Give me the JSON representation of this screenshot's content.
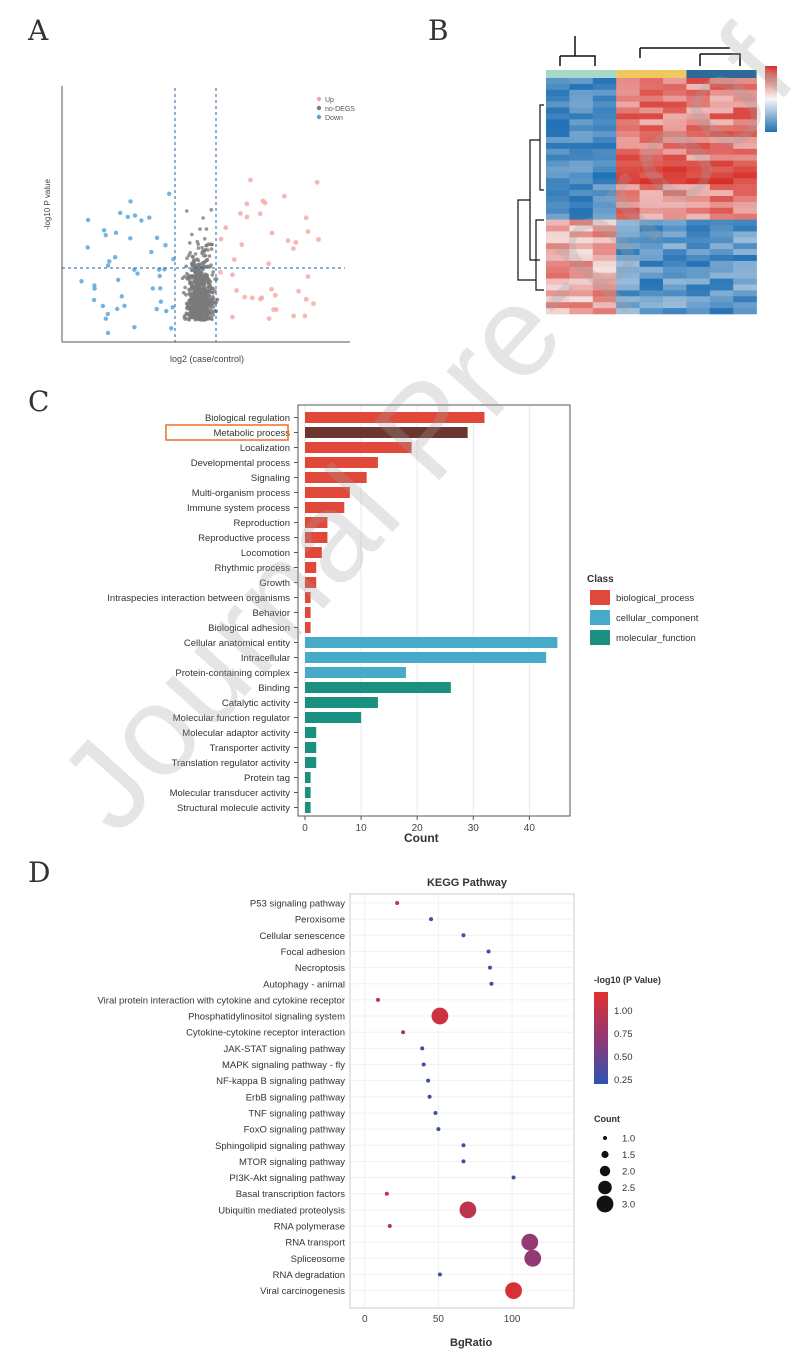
{
  "panels": {
    "a": "A",
    "b": "B",
    "c": "C",
    "d": "D"
  },
  "watermark": "Journal Pre-proof",
  "chart_data": [
    {
      "id": "volcano",
      "type": "scatter",
      "xlabel": "log2 (case/control)",
      "ylabel": "-log10 P value",
      "legend": [
        "Up",
        "no-DEGS",
        "Down"
      ],
      "legend_position": "top-right",
      "colors": {
        "Up": "#f4a6a0",
        "no-DEGS": "#7a7a7a",
        "Down": "#5aa6d9"
      }
    },
    {
      "id": "heatmap",
      "type": "heatmap",
      "groups": 3,
      "group_colors": [
        "#a8d8c8",
        "#f0c860",
        "#2c6a9a"
      ],
      "color_scale": {
        "high": "#d73027",
        "mid": "#f7f7f7",
        "low": "#2171b5"
      }
    },
    {
      "id": "go_bar",
      "type": "bar",
      "orientation": "horizontal",
      "xlabel": "Count",
      "xlim": [
        0,
        46
      ],
      "xticks": [
        0,
        10,
        20,
        30,
        40
      ],
      "legend_title": "Class",
      "legend_position": "right",
      "highlighted": "Metabolic process",
      "classes": [
        {
          "name": "biological_process",
          "color": "#e0483a"
        },
        {
          "name": "cellular_component",
          "color": "#46aac8"
        },
        {
          "name": "molecular_function",
          "color": "#1a9080"
        }
      ],
      "categories": [
        "Biological regulation",
        "Metabolic process",
        "Localization",
        "Developmental process",
        "Signaling",
        "Multi-organism process",
        "Immune system process",
        "Reproduction",
        "Reproductive process",
        "Locomotion",
        "Rhythmic process",
        "Growth",
        "Intraspecies interaction between organisms",
        "Behavior",
        "Biological adhesion",
        "Cellular anatomical entity",
        "Intracellular",
        "Protein-containing complex",
        "Binding",
        "Catalytic activity",
        "Molecular function regulator",
        "Molecular adaptor activity",
        "Transporter activity",
        "Translation regulator activity",
        "Protein tag",
        "Molecular transducer activity",
        "Structural molecule activity"
      ],
      "values": [
        32,
        29,
        19,
        13,
        11,
        8,
        7,
        4,
        4,
        3,
        2,
        2,
        1,
        1,
        1,
        45,
        43,
        18,
        26,
        13,
        10,
        2,
        2,
        2,
        1,
        1,
        1
      ],
      "class_index": [
        0,
        0,
        0,
        0,
        0,
        0,
        0,
        0,
        0,
        0,
        0,
        0,
        0,
        0,
        0,
        1,
        1,
        1,
        2,
        2,
        2,
        2,
        2,
        2,
        2,
        2,
        2
      ]
    },
    {
      "id": "kegg",
      "type": "scatter",
      "title": "KEGG Pathway",
      "xlabel": "BgRatio",
      "xlim": [
        -10,
        142
      ],
      "xticks": [
        0,
        50,
        100
      ],
      "color_legend_title": "-log10 (P Value)",
      "color_ticks": [
        1.0,
        0.75,
        0.5,
        0.25
      ],
      "color_range": [
        0.2,
        1.2
      ],
      "size_legend_title": "Count",
      "size_ticks": [
        1.0,
        1.5,
        2.0,
        2.5,
        3.0
      ],
      "categories": [
        "P53 signaling pathway",
        "Peroxisome",
        "Cellular senescence",
        "Focal adhesion",
        "Necroptosis",
        "Autophagy - animal",
        "Viral protein interaction with cytokine and cytokine receptor",
        "Phosphatidylinositol signaling system",
        "Cytokine-cytokine receptor interaction",
        "JAK-STAT signaling pathway",
        "MAPK signaling pathway - fly",
        "NF-kappa B signaling pathway",
        "ErbB signaling pathway",
        "TNF signaling pathway",
        "FoxO signaling pathway",
        "Sphingolipid signaling pathway",
        "MTOR signaling pathway",
        "PI3K-Akt signaling pathway",
        "Basal transcription factors",
        "Ubiquitin mediated proteolysis",
        "RNA polymerase",
        "RNA transport",
        "Spliceosome",
        "RNA degradation",
        "Viral carcinogenesis"
      ],
      "bgratio": [
        22,
        45,
        67,
        84,
        85,
        86,
        9,
        51,
        26,
        39,
        40,
        43,
        44,
        48,
        50,
        67,
        67,
        101,
        15,
        70,
        17,
        112,
        114,
        51,
        101
      ],
      "count": [
        1,
        1,
        1,
        1,
        1,
        1,
        1,
        3,
        1,
        1,
        1,
        1,
        1,
        1,
        1,
        1,
        1,
        1,
        1,
        3,
        1,
        3,
        3,
        1,
        3
      ],
      "neglog10p": [
        1.0,
        0.3,
        0.3,
        0.3,
        0.3,
        0.3,
        1.0,
        1.1,
        0.8,
        0.3,
        0.3,
        0.3,
        0.3,
        0.3,
        0.3,
        0.3,
        0.3,
        0.3,
        1.0,
        1.0,
        0.9,
        0.75,
        0.75,
        0.3,
        1.15
      ]
    }
  ]
}
